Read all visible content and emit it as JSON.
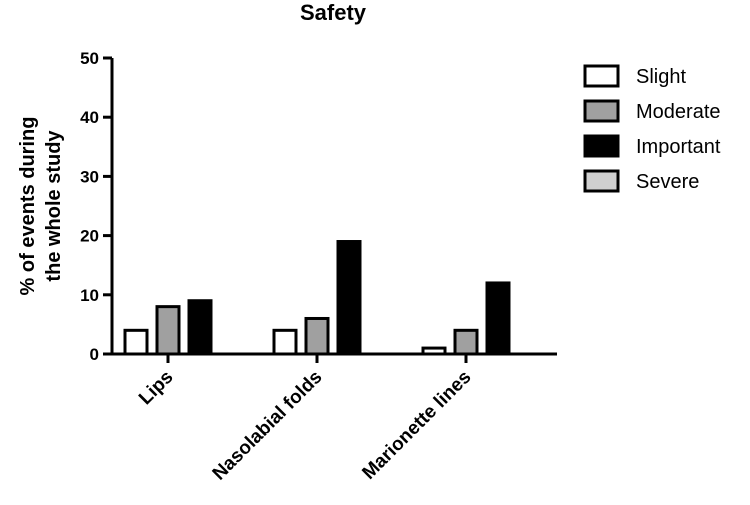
{
  "chart_data": {
    "type": "bar",
    "title": "Safety",
    "ylabel_lines": [
      "% of events during",
      "the whole study"
    ],
    "xlabel": "",
    "ylim": [
      0,
      50
    ],
    "yticks": [
      0,
      10,
      20,
      30,
      40,
      50
    ],
    "categories": [
      "Lips",
      "Nasolabial folds",
      "Marionette lines"
    ],
    "series": [
      {
        "name": "Slight",
        "values": [
          4,
          4,
          1
        ],
        "color": "#ffffff"
      },
      {
        "name": "Moderate",
        "values": [
          8,
          6,
          4
        ],
        "color": "#a0a0a0"
      },
      {
        "name": "Important",
        "values": [
          9,
          19,
          12
        ],
        "color": "#000000"
      },
      {
        "name": "Severe",
        "values": [
          0,
          0,
          0
        ],
        "color": "#d0d0d0"
      }
    ],
    "legend_position": "right",
    "grid": false
  }
}
